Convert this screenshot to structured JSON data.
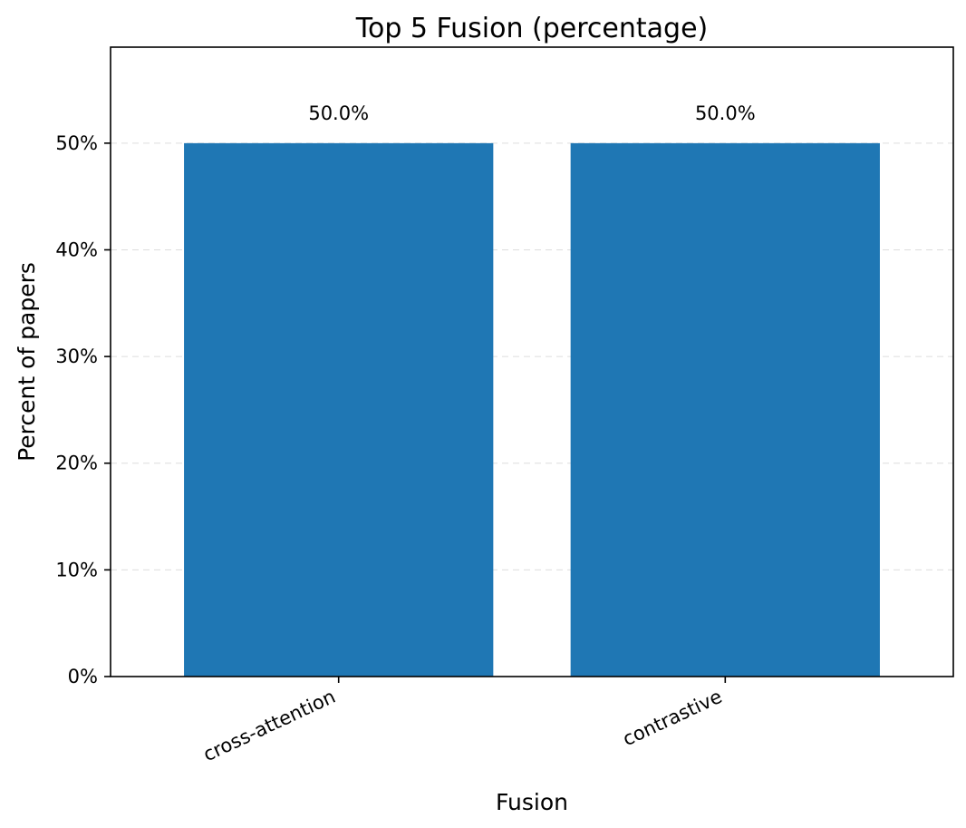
{
  "chart_data": {
    "type": "bar",
    "title": "Top 5 Fusion (percentage)",
    "xlabel": "Fusion",
    "ylabel": "Percent of papers",
    "categories": [
      "cross-attention",
      "contrastive"
    ],
    "values": [
      50.0,
      50.0
    ],
    "data_labels": [
      "50.0%",
      "50.0%"
    ],
    "ylim": [
      0,
      59
    ],
    "yticks": [
      0,
      10,
      20,
      30,
      40,
      50
    ],
    "ytick_labels": [
      "0%",
      "10%",
      "20%",
      "30%",
      "40%",
      "50%"
    ],
    "grid": "y-dashed",
    "bar_color": "#1f77b4"
  }
}
